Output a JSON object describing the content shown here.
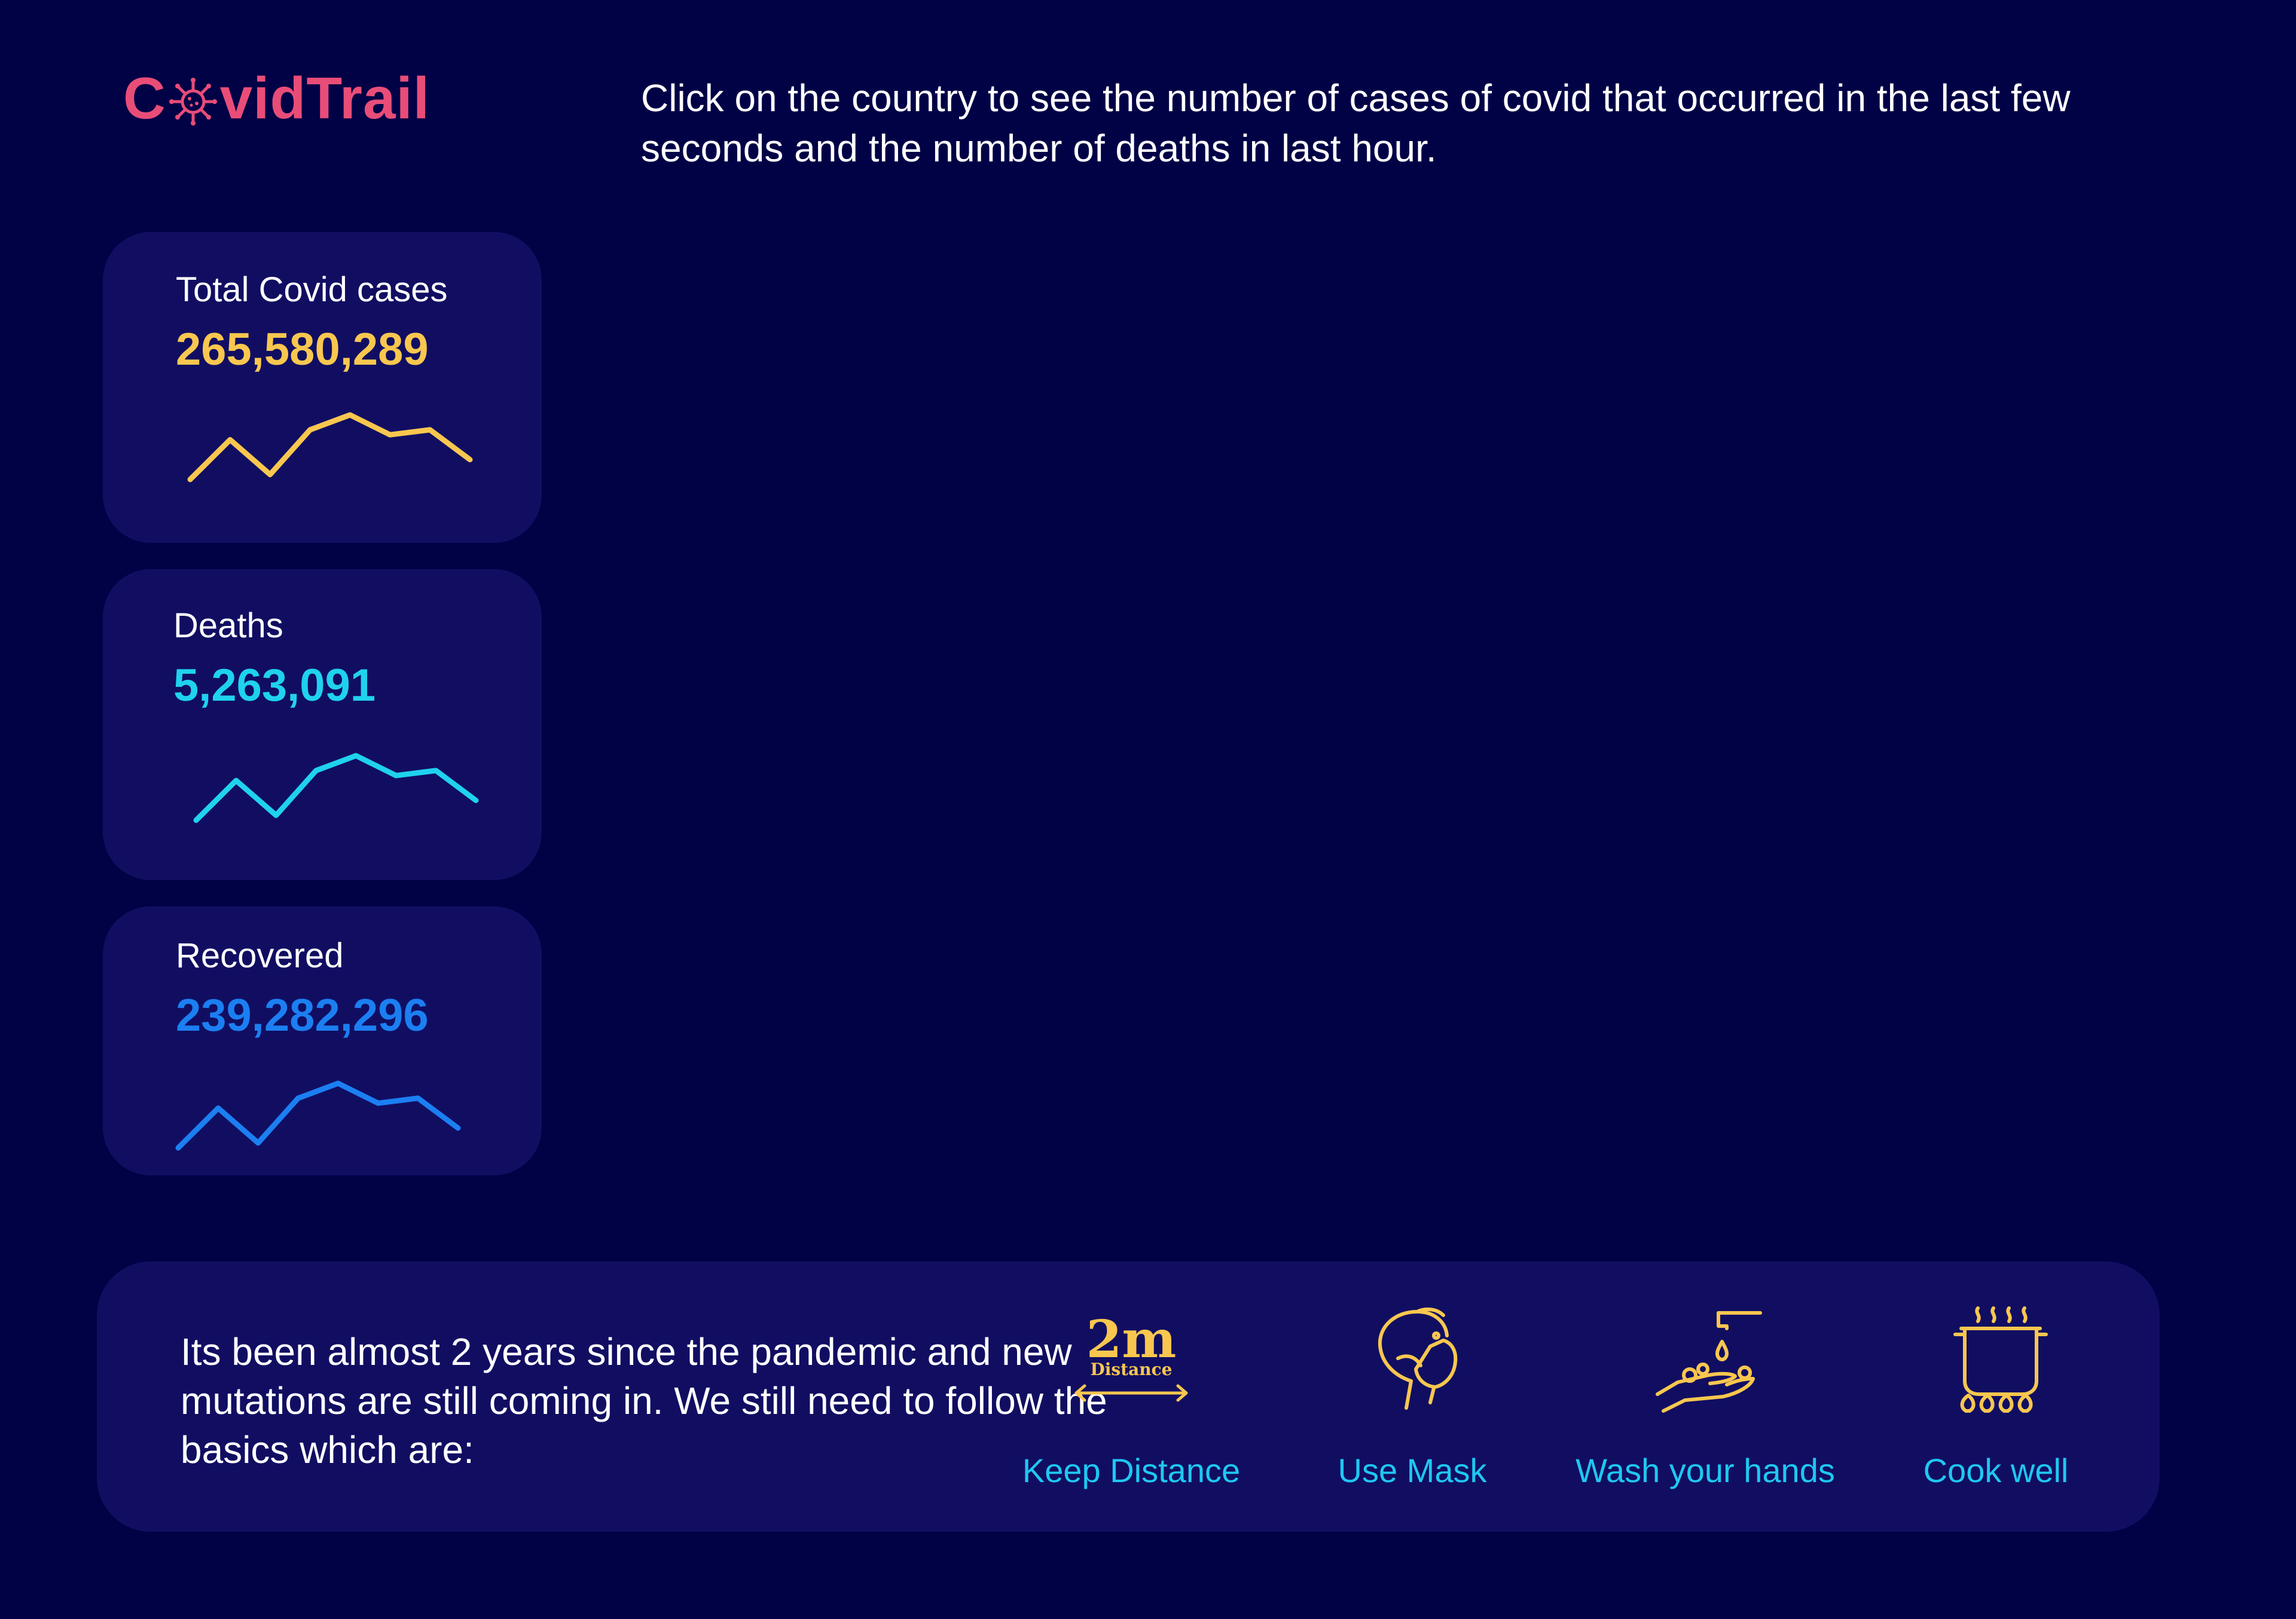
{
  "header": {
    "logo_prefix": "C",
    "logo_suffix": "vidTrail",
    "logo_icon": "virus-icon",
    "logo_color": "#e84d78",
    "instruction": "Click on the country to see the number of cases of covid that occurred in the last few seconds and the number of deaths in last hour."
  },
  "stats": {
    "total": {
      "label": "Total Covid cases",
      "value": "265,580,289",
      "color": "#f9c74f",
      "trend": [
        2,
        6,
        2.5,
        7,
        8.5,
        6.5,
        7,
        4
      ]
    },
    "deaths": {
      "label": "Deaths",
      "value": "5,263,091",
      "color": "#1fd2ee",
      "trend": [
        2,
        6,
        2.5,
        7,
        8.5,
        6.5,
        7,
        4
      ]
    },
    "recovered": {
      "label": "Recovered",
      "value": "239,282,296",
      "color": "#1b7ff2",
      "trend": [
        2,
        6,
        2.5,
        7,
        8.5,
        6.5,
        7,
        4
      ]
    }
  },
  "basics": {
    "text": "Its been almost 2 years since the pandemic and new mutations are still coming in. We still need to follow the basics which are:",
    "accent_color": "#f9c74f",
    "label_color": "#1fc8f0",
    "tips": [
      {
        "label": "Keep Distance",
        "icon": "distance-icon",
        "icon_big": "2m",
        "icon_small": "Distance"
      },
      {
        "label": "Use Mask",
        "icon": "mask-icon"
      },
      {
        "label": "Wash your hands",
        "icon": "hand-wash-icon"
      },
      {
        "label": "Cook well",
        "icon": "cooking-pot-icon"
      }
    ]
  }
}
